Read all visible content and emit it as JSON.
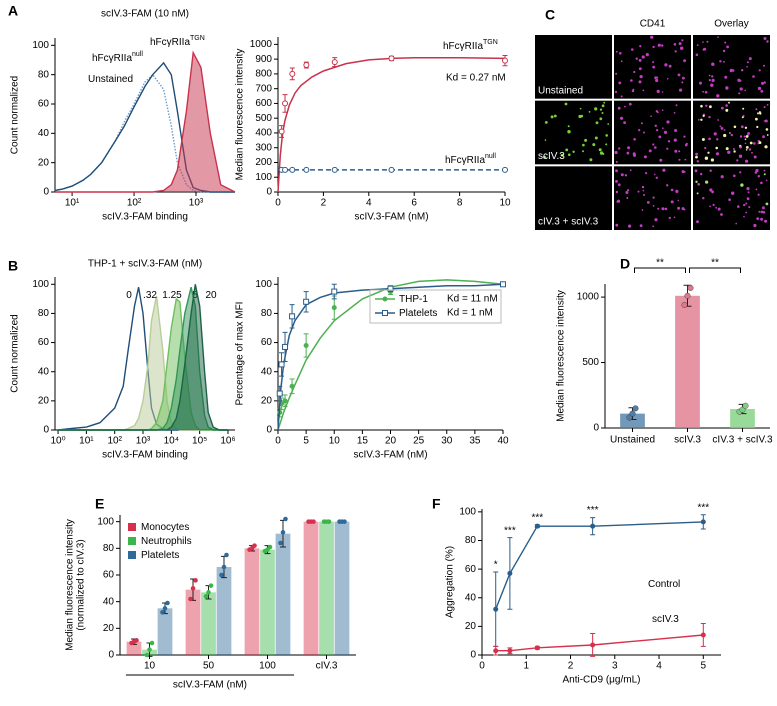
{
  "chart_data": [
    {
      "type": "line",
      "panel": "A",
      "title": "scIV.3-FAM (10 nM)",
      "x_label": "scIV.3-FAM binding",
      "y_label": "Count normalized",
      "xscale": "log",
      "xlim": [
        5.3,
        4260
      ],
      "xticks": [
        {
          "value": 10,
          "label": "10¹"
        },
        {
          "value": 100,
          "label": "10²"
        },
        {
          "value": 1000,
          "label": "10³"
        }
      ],
      "ylim": [
        0,
        105
      ],
      "yticks": [
        0,
        20,
        40,
        60,
        80,
        100
      ],
      "x": [
        5.3,
        7,
        10,
        15,
        20,
        30,
        50,
        70,
        100,
        150,
        200,
        300,
        400,
        500,
        700,
        900,
        1200,
        1700,
        2500,
        4260
      ],
      "series": [
        {
          "name": "Unstained",
          "color": "#6d9cc8",
          "dash": "dotted",
          "values": [
            1,
            2,
            4,
            8,
            12,
            20,
            35,
            48,
            60,
            75,
            80,
            70,
            45,
            20,
            5,
            1,
            0,
            0,
            0,
            0
          ]
        },
        {
          "name": "hFcγRIIa",
          "name_sup": "null",
          "color": "#1f4e79",
          "values": [
            1,
            2,
            4,
            8,
            12,
            20,
            35,
            45,
            58,
            72,
            80,
            88,
            80,
            55,
            15,
            3,
            1,
            0,
            0,
            0
          ]
        },
        {
          "name": "hFcγRIIa",
          "name_sup": "TGN",
          "color": "#c8324c",
          "filled": true,
          "values": [
            0,
            0,
            0,
            0,
            0,
            0,
            0,
            0,
            0,
            0,
            0,
            1,
            5,
            15,
            55,
            95,
            85,
            40,
            5,
            0
          ]
        }
      ]
    },
    {
      "type": "line",
      "x_label": "scIV.3-FAM (nM)",
      "y_label": "Median fluorescence intensity",
      "xlim": [
        0,
        10
      ],
      "xticks": [
        0,
        2,
        4,
        6,
        8,
        10
      ],
      "ylim": [
        0,
        1050
      ],
      "yticks": [
        0,
        100,
        200,
        300,
        400,
        500,
        600,
        700,
        800,
        900,
        1000
      ],
      "x": [
        0.16,
        0.31,
        0.63,
        1.25,
        2.5,
        5,
        10
      ],
      "fit_x": [
        0,
        0.1,
        0.2,
        0.3,
        0.5,
        0.75,
        1,
        1.5,
        2,
        3,
        4,
        5,
        6,
        8,
        10
      ],
      "series": [
        {
          "name": "hFcγRIIa",
          "name_sup": "TGN",
          "color": "#c8324c",
          "marker": "open-circle",
          "values": [
            410,
            600,
            800,
            860,
            880,
            905,
            890
          ],
          "errors": [
            40,
            60,
            40,
            20,
            30,
            15,
            35
          ],
          "fit_values": [
            0,
            250,
            390,
            480,
            590,
            670,
            720,
            780,
            820,
            870,
            895,
            905,
            910,
            910,
            905
          ]
        },
        {
          "name": "hFcγRIIa",
          "name_sup": "null",
          "color": "#2a5d8a",
          "marker": "open-circle",
          "dash": "dashed",
          "values": [
            150,
            150,
            150,
            150,
            150,
            150,
            150
          ],
          "errors": [
            5,
            5,
            5,
            5,
            5,
            5,
            5
          ],
          "fit_values": [
            150,
            150,
            150,
            150,
            150,
            150,
            150,
            150,
            150,
            150,
            150,
            150,
            150,
            150,
            150
          ]
        }
      ],
      "annotations": [
        "Kd = 0.27 nM"
      ]
    },
    {
      "type": "line",
      "panel": "B",
      "title": "THP-1 + scIV.3-FAM (nM)",
      "x_label": "scIV.3-FAM binding",
      "y_label": "Count normalized",
      "xscale": "log",
      "xlim": [
        0.78,
        1770000
      ],
      "xticks": [
        {
          "value": 1,
          "label": "10⁰"
        },
        {
          "value": 10,
          "label": "10¹"
        },
        {
          "value": 100,
          "label": "10²"
        },
        {
          "value": 1000,
          "label": "10³"
        },
        {
          "value": 10000,
          "label": "10⁴"
        },
        {
          "value": 100000,
          "label": "10⁵"
        },
        {
          "value": 1000000,
          "label": "10⁶"
        }
      ],
      "ylim": [
        0,
        105
      ],
      "yticks": [
        0,
        20,
        40,
        60,
        80,
        100
      ],
      "x": [
        1,
        3,
        10,
        30,
        100,
        200,
        300,
        500,
        700,
        1000,
        1500,
        2000,
        3000,
        5000,
        7000,
        10000,
        15000,
        20000,
        30000,
        50000,
        70000,
        100000,
        150000,
        200000,
        300000,
        500000,
        1000000
      ],
      "series": [
        {
          "name": "0",
          "color": "#1f4e79",
          "values": [
            0,
            1,
            2,
            5,
            15,
            30,
            55,
            85,
            98,
            80,
            40,
            15,
            4,
            1,
            0,
            0,
            0,
            0,
            0,
            0,
            0,
            0,
            0,
            0,
            0,
            0,
            0
          ]
        },
        {
          "name": ".32",
          "color": "#b9cc98",
          "filled": true,
          "values": [
            0,
            0,
            0,
            0,
            0,
            0,
            1,
            3,
            8,
            20,
            45,
            75,
            92,
            55,
            20,
            5,
            1,
            0,
            0,
            0,
            0,
            0,
            0,
            0,
            0,
            0,
            0
          ]
        },
        {
          "name": "1.25",
          "color": "#6fbf5e",
          "filled": true,
          "values": [
            0,
            0,
            0,
            0,
            0,
            0,
            0,
            0,
            0,
            0,
            0,
            1,
            5,
            20,
            45,
            70,
            90,
            88,
            50,
            12,
            3,
            0,
            0,
            0,
            0,
            0,
            0
          ]
        },
        {
          "name": "5",
          "color": "#35955a",
          "filled": true,
          "values": [
            0,
            0,
            0,
            0,
            0,
            0,
            0,
            0,
            0,
            0,
            0,
            0,
            0,
            1,
            5,
            15,
            35,
            55,
            80,
            98,
            85,
            40,
            10,
            2,
            0,
            0,
            0
          ]
        },
        {
          "name": "20",
          "color": "#1b6446",
          "filled": true,
          "values": [
            0,
            0,
            0,
            0,
            0,
            0,
            0,
            0,
            0,
            0,
            0,
            0,
            0,
            0,
            0,
            2,
            8,
            20,
            45,
            80,
            100,
            85,
            40,
            12,
            2,
            0,
            0
          ]
        }
      ]
    },
    {
      "type": "line",
      "x_label": "scIV.3-FAM (nM)",
      "y_label": "Percentage of max MFI",
      "legend": "upper right",
      "xlim": [
        0,
        40
      ],
      "xticks": [
        0,
        5,
        10,
        15,
        20,
        25,
        30,
        35,
        40
      ],
      "ylim": [
        0,
        105
      ],
      "yticks": [
        0,
        20,
        40,
        60,
        80,
        100
      ],
      "x": [
        0.31,
        0.63,
        1.25,
        2.5,
        5,
        10,
        20,
        40
      ],
      "fit_x": [
        0,
        0.5,
        1,
        2,
        3,
        5,
        7.5,
        10,
        15,
        20,
        25,
        30,
        35,
        40
      ],
      "series": [
        {
          "name": "THP-1",
          "kd_label": "Kd = 11 nM",
          "color": "#4cb050",
          "marker": "circle",
          "marker_color": "#2a5d8a",
          "values": [
            12,
            18,
            20,
            30,
            58,
            84,
            95,
            100
          ],
          "errors": [
            3,
            4,
            4,
            5,
            8,
            8,
            2,
            0
          ],
          "fit_values": [
            0,
            6,
            12,
            22,
            31,
            48,
            63,
            75,
            90,
            98,
            102,
            103,
            102,
            100
          ]
        },
        {
          "name": "Platelets",
          "kd_label": "Kd = 1 nM",
          "color": "#2a5d8a",
          "marker": "open-square",
          "values": [
            25,
            45,
            57,
            78,
            88,
            95,
            97,
            100
          ],
          "errors": [
            5,
            8,
            10,
            8,
            7,
            5,
            2,
            0
          ],
          "fit_values": [
            0,
            28,
            45,
            65,
            75,
            86,
            91,
            94,
            96,
            97,
            98,
            99,
            99,
            100
          ]
        }
      ]
    },
    {
      "type": "image-grid",
      "panel": "C",
      "column_labels": [
        "CD41",
        "Overlay"
      ],
      "row_labels": [
        "Unstained",
        "scIV.3",
        "cIV.3 + scIV.3"
      ]
    },
    {
      "type": "bar",
      "panel": "D",
      "y_label": "Median fluorescence intensity",
      "categories": [
        "Unstained",
        "scIV.3",
        "cIV.3 + scIV.3"
      ],
      "values": [
        110,
        1010,
        145
      ],
      "errors": [
        45,
        80,
        35
      ],
      "points": [
        [
          80,
          110,
          150
        ],
        [
          940,
          1010,
          1070
        ],
        [
          125,
          140,
          170
        ]
      ],
      "colors": [
        "#4f7fa8",
        "#e0788c",
        "#7fcf80"
      ],
      "ylim": [
        0,
        1100
      ],
      "yticks": [
        0,
        500,
        1000
      ],
      "significance_labels": [
        "**",
        "**"
      ]
    },
    {
      "type": "grouped-bar",
      "panel": "E",
      "x_label": "scIV.3-FAM (nM)",
      "y_label": [
        "Median fluorescence intensity",
        "(normalized to cIV.3)"
      ],
      "legend": "upper left",
      "categories": [
        "10",
        "50",
        "100",
        "cIV.3"
      ],
      "ylim": [
        0,
        105
      ],
      "yticks": [
        0,
        20,
        40,
        60,
        80,
        100
      ],
      "series": [
        {
          "name": "Monocytes",
          "color": "#d6304c",
          "values": [
            10,
            49,
            80,
            100
          ],
          "errors": [
            2,
            8,
            2,
            0
          ],
          "points": [
            [
              9,
              10,
              11
            ],
            [
              42,
              50,
              56
            ],
            [
              79,
              80,
              82
            ],
            [
              100,
              100,
              100
            ]
          ]
        },
        {
          "name": "Neutrophils",
          "color": "#3cb54a",
          "values": [
            4,
            47,
            79,
            100
          ],
          "errors": [
            5,
            5,
            3,
            0
          ],
          "points": [
            [
              0,
              4,
              9
            ],
            [
              44,
              47,
              52
            ],
            [
              78,
              79,
              81
            ],
            [
              100,
              100,
              100
            ]
          ]
        },
        {
          "name": "Platelets",
          "color": "#2e6a9a",
          "values": [
            35,
            66,
            91,
            100
          ],
          "errors": [
            4,
            8,
            10,
            0
          ],
          "points": [
            [
              32,
              35,
              39
            ],
            [
              60,
              66,
              75
            ],
            [
              84,
              92,
              102
            ],
            [
              100,
              100,
              100
            ]
          ]
        }
      ]
    },
    {
      "type": "line",
      "panel": "F",
      "x_label": "Anti-CD9 (μg/mL)",
      "y_label": "Aggregation (%)",
      "xlim": [
        0,
        5.4
      ],
      "xticks": [
        0,
        1,
        2,
        3,
        4,
        5
      ],
      "ylim": [
        0,
        102
      ],
      "yticks": [
        0,
        20,
        40,
        60,
        80,
        100
      ],
      "x": [
        0.31,
        0.63,
        1.25,
        2.5,
        5
      ],
      "series": [
        {
          "name": "Control",
          "color": "#2a5d8a",
          "marker": "circle",
          "values": [
            32,
            57,
            90,
            90,
            93
          ],
          "errors": [
            26,
            25,
            1,
            6,
            5
          ],
          "significance_labels": [
            "*",
            "***",
            "***",
            "***",
            "***"
          ]
        },
        {
          "name": "scIV.3",
          "color": "#d6304c",
          "marker": "circle",
          "values": [
            3,
            3,
            5,
            7,
            14
          ],
          "errors": [
            3,
            2,
            1,
            8,
            8
          ]
        }
      ]
    }
  ]
}
